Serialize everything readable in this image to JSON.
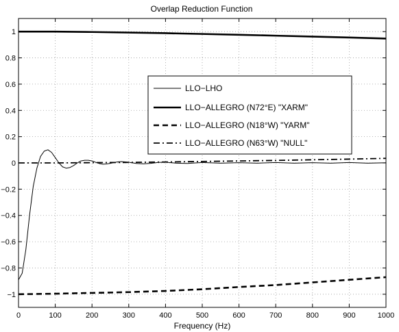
{
  "chart_data": {
    "type": "line",
    "title": "Overlap Reduction Function",
    "xlabel": "Frequency (Hz)",
    "ylabel": "",
    "xlim": [
      0,
      1000
    ],
    "ylim": [
      -1.1,
      1.1
    ],
    "xticks": [
      0,
      100,
      200,
      300,
      400,
      500,
      600,
      700,
      800,
      900,
      1000
    ],
    "xtick_labels": [
      "0",
      "100",
      "200",
      "300",
      "400",
      "500",
      "600",
      "700",
      "800",
      "900",
      "1000"
    ],
    "yticks": [
      -1,
      -0.8,
      -0.6,
      -0.4,
      -0.2,
      0,
      0.2,
      0.4,
      0.6,
      0.8,
      1
    ],
    "ytick_labels": [
      "−1",
      "−0.8",
      "−0.6",
      "−0.4",
      "−0.2",
      "0",
      "0.2",
      "0.4",
      "0.6",
      "0.8",
      "1"
    ],
    "grid": true,
    "legend_position": "center-right",
    "series": [
      {
        "name": "LLO−LHO",
        "line_style": "solid",
        "line_width": "thin",
        "color": "#000000",
        "x": [
          0,
          10,
          20,
          30,
          40,
          50,
          60,
          70,
          80,
          90,
          100,
          110,
          120,
          130,
          140,
          150,
          160,
          170,
          180,
          190,
          200,
          210,
          220,
          230,
          240,
          250,
          260,
          270,
          280,
          290,
          300,
          320,
          340,
          360,
          380,
          400,
          430,
          460,
          500,
          550,
          600,
          650,
          700,
          750,
          800,
          850,
          900,
          950,
          1000
        ],
        "y": [
          -0.89,
          -0.84,
          -0.66,
          -0.4,
          -0.18,
          -0.04,
          0.05,
          0.09,
          0.1,
          0.08,
          0.04,
          0.0,
          -0.03,
          -0.04,
          -0.035,
          -0.02,
          0.0,
          0.015,
          0.02,
          0.02,
          0.015,
          0.005,
          -0.005,
          -0.01,
          -0.008,
          -0.003,
          0.003,
          0.008,
          0.01,
          0.008,
          0.005,
          -0.004,
          -0.007,
          -0.003,
          0.004,
          0.005,
          -0.002,
          -0.004,
          0.003,
          -0.002,
          0.002,
          -0.002,
          0.003,
          -0.002,
          0.002,
          -0.002,
          0.003,
          -0.002,
          0.001
        ]
      },
      {
        "name": "LLO−ALLEGRO (N72°E) \"XARM\"",
        "line_style": "solid",
        "line_width": "thick",
        "color": "#000000",
        "x": [
          0,
          100,
          200,
          300,
          400,
          500,
          600,
          700,
          800,
          900,
          1000
        ],
        "y": [
          1.0,
          1.0,
          0.997,
          0.993,
          0.988,
          0.982,
          0.976,
          0.969,
          0.962,
          0.955,
          0.947
        ]
      },
      {
        "name": "LLO−ALLEGRO (N18°W) \"YARM\"",
        "line_style": "dashed",
        "line_width": "thick",
        "color": "#000000",
        "x": [
          0,
          100,
          200,
          300,
          400,
          500,
          600,
          700,
          800,
          900,
          1000
        ],
        "y": [
          -1.0,
          -0.996,
          -0.99,
          -0.984,
          -0.975,
          -0.962,
          -0.945,
          -0.93,
          -0.91,
          -0.89,
          -0.87
        ]
      },
      {
        "name": "LLO−ALLEGRO (N63°W) \"NULL\"",
        "line_style": "dashdot",
        "line_width": "medium",
        "color": "#000000",
        "x": [
          0,
          100,
          200,
          300,
          400,
          500,
          600,
          700,
          800,
          900,
          1000
        ],
        "y": [
          0.0,
          0.0,
          0.002,
          0.004,
          0.007,
          0.011,
          0.015,
          0.019,
          0.024,
          0.029,
          0.035
        ]
      }
    ]
  }
}
